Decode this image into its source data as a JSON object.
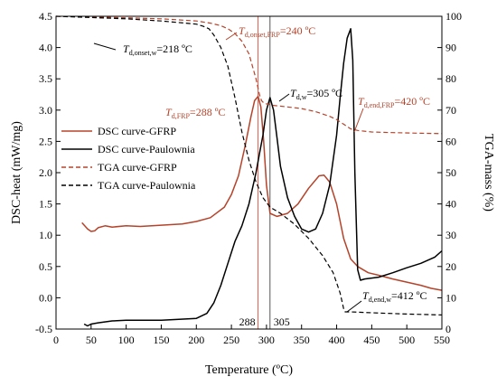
{
  "chart_data": {
    "type": "line",
    "xlabel": "Temperature (ºC)",
    "ylabel_left": "DSC-heat (mW/mg)",
    "ylabel_right": "TGA-mass (%)",
    "xlim": [
      0,
      550
    ],
    "ylim_left": [
      -0.5,
      4.5
    ],
    "ylim_right": [
      0,
      100
    ],
    "x_ticks": [
      0,
      50,
      100,
      150,
      200,
      250,
      300,
      350,
      400,
      450,
      500,
      550
    ],
    "y_left_ticks": [
      -0.5,
      0.0,
      0.5,
      1.0,
      1.5,
      2.0,
      2.5,
      3.0,
      3.5,
      4.0,
      4.5
    ],
    "y_right_ticks": [
      0,
      10,
      20,
      30,
      40,
      50,
      60,
      70,
      80,
      90,
      100
    ],
    "grid": false,
    "legend_position": "center-left",
    "colors": {
      "gfrp": "#b5432a",
      "paulownia": "#000000",
      "vline_gfrp": "#e05a4a",
      "vline_paulownia": "#555555"
    },
    "series": [
      {
        "name": "DSC curve-GFRP",
        "axis": "left",
        "style": "solid",
        "color": "#b5432a",
        "x": [
          37,
          45,
          50,
          55,
          60,
          70,
          80,
          100,
          120,
          150,
          180,
          200,
          220,
          240,
          250,
          260,
          270,
          278,
          283,
          288,
          292,
          296,
          300,
          305,
          315,
          330,
          345,
          360,
          375,
          382,
          390,
          400,
          410,
          420,
          430,
          445,
          460,
          480,
          500,
          520,
          535,
          550
        ],
        "y": [
          1.2,
          1.1,
          1.06,
          1.07,
          1.12,
          1.15,
          1.13,
          1.15,
          1.14,
          1.16,
          1.18,
          1.22,
          1.28,
          1.45,
          1.65,
          1.95,
          2.45,
          2.9,
          3.15,
          3.22,
          3.05,
          2.5,
          1.8,
          1.35,
          1.3,
          1.35,
          1.5,
          1.75,
          1.95,
          1.96,
          1.85,
          1.5,
          0.95,
          0.62,
          0.5,
          0.4,
          0.36,
          0.3,
          0.25,
          0.2,
          0.15,
          0.12
        ]
      },
      {
        "name": "DSC curve-Paulownia",
        "axis": "left",
        "style": "solid",
        "color": "#000000",
        "x": [
          40,
          45,
          50,
          60,
          80,
          100,
          150,
          200,
          215,
          225,
          235,
          245,
          255,
          265,
          275,
          285,
          290,
          295,
          300,
          305,
          310,
          315,
          320,
          330,
          340,
          350,
          360,
          370,
          380,
          390,
          400,
          405,
          410,
          415,
          420,
          423,
          426,
          430,
          434,
          440,
          460,
          480,
          500,
          520,
          540,
          550
        ],
        "y": [
          -0.42,
          -0.45,
          -0.42,
          -0.4,
          -0.37,
          -0.36,
          -0.36,
          -0.33,
          -0.25,
          -0.08,
          0.2,
          0.55,
          0.9,
          1.15,
          1.5,
          2.0,
          2.3,
          2.6,
          3.0,
          3.2,
          3.0,
          2.55,
          2.1,
          1.6,
          1.3,
          1.1,
          1.05,
          1.1,
          1.35,
          1.8,
          2.6,
          3.2,
          3.75,
          4.15,
          4.3,
          3.8,
          2.0,
          0.45,
          0.28,
          0.3,
          0.33,
          0.4,
          0.48,
          0.55,
          0.65,
          0.75
        ]
      },
      {
        "name": "TGA curve-GFRP",
        "axis": "right",
        "style": "dashed",
        "color": "#b5432a",
        "x": [
          0,
          50,
          100,
          150,
          200,
          220,
          235,
          245,
          255,
          265,
          275,
          285,
          290,
          293,
          296,
          300,
          310,
          330,
          350,
          370,
          390,
          400,
          410,
          420,
          430,
          450,
          480,
          520,
          550
        ],
        "y": [
          100,
          99.8,
          99.5,
          99.2,
          98.5,
          97.8,
          97,
          96,
          94.5,
          92,
          88,
          80,
          75,
          73,
          72.3,
          72,
          71.5,
          71,
          70.5,
          69.5,
          68,
          67,
          65.5,
          64,
          63.5,
          63,
          62.8,
          62.6,
          62.5
        ]
      },
      {
        "name": "TGA curve-Paulownia",
        "axis": "right",
        "style": "dashed",
        "color": "#000000",
        "x": [
          0,
          50,
          100,
          150,
          200,
          210,
          218,
          225,
          235,
          245,
          255,
          265,
          275,
          285,
          295,
          305,
          320,
          340,
          360,
          380,
          395,
          405,
          410,
          412,
          420,
          450,
          500,
          550
        ],
        "y": [
          100,
          99.6,
          99.2,
          98.5,
          97.5,
          96.8,
          96,
          94,
          90,
          84,
          74,
          63,
          54,
          47,
          42,
          39,
          37,
          33.5,
          29,
          23.5,
          18,
          11.5,
          6.5,
          5.5,
          5.5,
          5.2,
          4.8,
          4.5
        ]
      }
    ],
    "vertical_lines": [
      {
        "x": 288,
        "label": "288",
        "color": "#e05a4a"
      },
      {
        "x": 305,
        "label": "305",
        "color": "#555555"
      }
    ],
    "annotations": [
      {
        "main": "T",
        "sub": "d,onset,w",
        "rest": "=218 ºC",
        "color": "#000000"
      },
      {
        "main": "T",
        "sub": "d,onset,FRP",
        "rest": "=240 ºC",
        "color": "#b5432a"
      },
      {
        "main": "T",
        "sub": "d,w",
        "rest": "=305 ºC",
        "color": "#000000"
      },
      {
        "main": "T",
        "sub": "d,FRP",
        "rest": "=288 ºC",
        "color": "#b5432a"
      },
      {
        "main": "T",
        "sub": "d,end,FRP",
        "rest": "=420 ºC",
        "color": "#b5432a"
      },
      {
        "main": "T",
        "sub": "d,end,w",
        "rest": "=412 ºC",
        "color": "#000000"
      }
    ]
  }
}
